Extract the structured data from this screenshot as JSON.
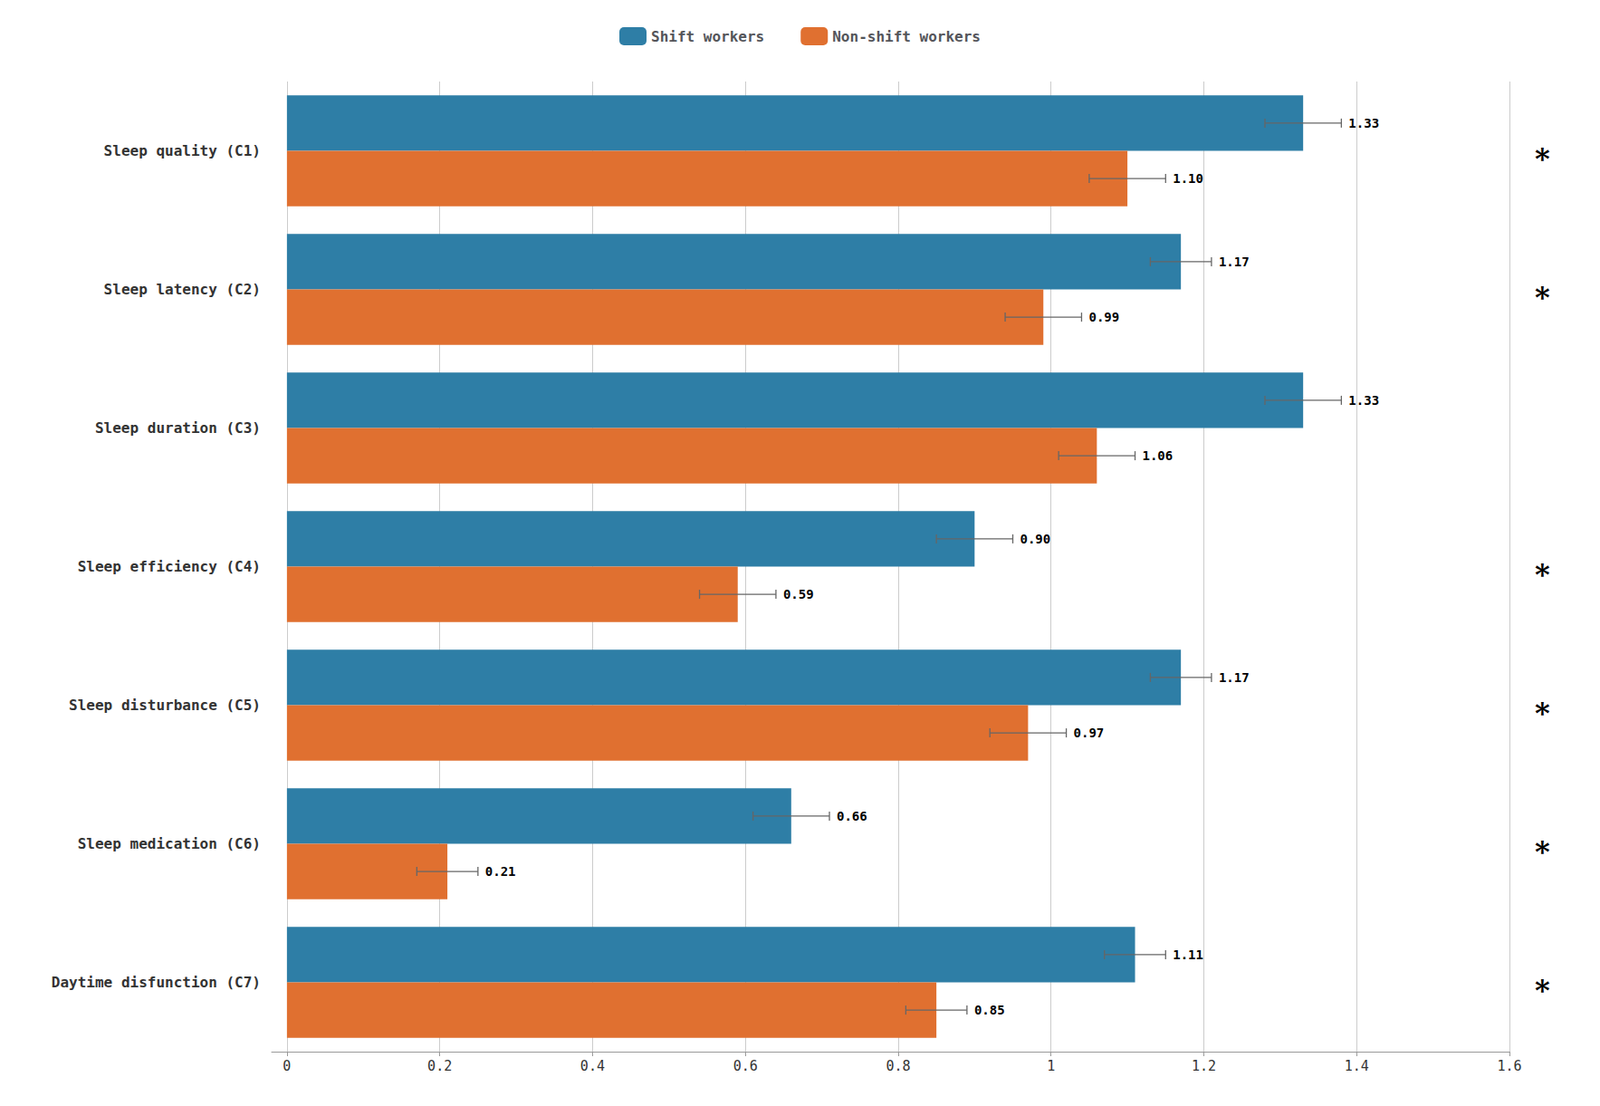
{
  "chart_data": {
    "type": "bar",
    "orientation": "horizontal",
    "categories": [
      "Sleep quality (C1)",
      "Sleep latency (C2)",
      "Sleep duration (C3)",
      "Sleep efficiency (C4)",
      "Sleep disturbance (C5)",
      "Sleep medication (C6)",
      "Daytime disfunction (C7)"
    ],
    "series": [
      {
        "name": "Shift workers",
        "color": "#2E7EA6",
        "values": [
          1.33,
          1.17,
          1.33,
          0.9,
          1.17,
          0.66,
          1.11
        ],
        "errors": [
          0.05,
          0.04,
          0.05,
          0.05,
          0.04,
          0.05,
          0.04
        ],
        "value_labels": [
          "1.33",
          "1.17",
          "1.33",
          "0.90",
          "1.17",
          "0.66",
          "1.11"
        ]
      },
      {
        "name": "Non-shift workers",
        "color": "#E07030",
        "values": [
          1.1,
          0.99,
          1.06,
          0.59,
          0.97,
          0.21,
          0.85
        ],
        "errors": [
          0.05,
          0.05,
          0.05,
          0.05,
          0.05,
          0.04,
          0.04
        ],
        "value_labels": [
          "1.10",
          "0.99",
          "1.06",
          "0.59",
          "0.97",
          "0.21",
          "0.85"
        ]
      }
    ],
    "xlim": [
      -0.02,
      1.6
    ],
    "xticks": [
      0,
      0.2,
      0.4,
      0.6,
      0.8,
      1.0,
      1.2,
      1.4,
      1.6
    ],
    "grid": true,
    "legend": "top",
    "data_labels": true,
    "annotations": [
      {
        "category": "Sleep quality (C1)",
        "text": "*"
      },
      {
        "category": "Sleep latency (C2)",
        "text": "*"
      },
      {
        "category": "Sleep efficiency (C4)",
        "text": "*"
      },
      {
        "category": "Sleep disturbance (C5)",
        "text": "*"
      },
      {
        "category": "Sleep medication (C6)",
        "text": "*"
      },
      {
        "category": "Daytime disfunction (C7)",
        "text": "*"
      }
    ]
  }
}
